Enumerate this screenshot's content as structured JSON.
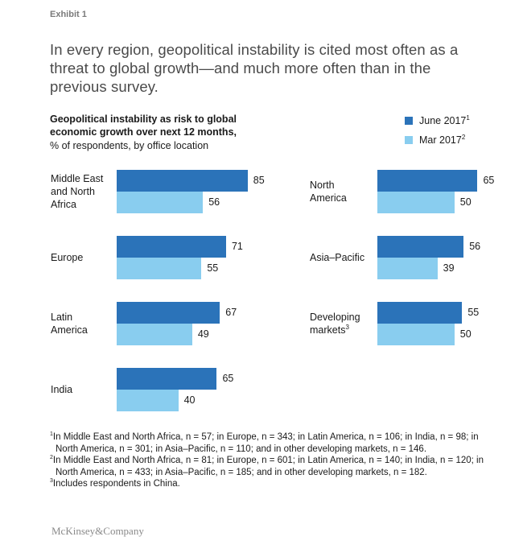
{
  "exhibit_label": "Exhibit 1",
  "headline": "In every region, geopolitical instability is cited most often as a threat to global growth—and much more often than in the previous survey.",
  "chart_data": {
    "type": "bar",
    "orientation": "horizontal",
    "title": "Geopolitical instability as risk to global economic growth over next 12 months,",
    "subtitle": "% of respondents, by office location",
    "categories": [
      {
        "lines": [
          "Middle East",
          "and North",
          "Africa"
        ],
        "sup": ""
      },
      {
        "lines": [
          "Europe"
        ],
        "sup": ""
      },
      {
        "lines": [
          "Latin",
          "America"
        ],
        "sup": ""
      },
      {
        "lines": [
          "India"
        ],
        "sup": ""
      },
      {
        "lines": [
          "North",
          "America"
        ],
        "sup": ""
      },
      {
        "lines": [
          "Asia–Pacific"
        ],
        "sup": ""
      },
      {
        "lines": [
          "Developing",
          "markets"
        ],
        "sup": "3"
      }
    ],
    "series": [
      {
        "name": "June 2017",
        "sup": "1",
        "color": "#2b73b9",
        "values": [
          85,
          71,
          67,
          65,
          65,
          56,
          55
        ]
      },
      {
        "name": "Mar 2017",
        "sup": "2",
        "color": "#89cdef",
        "values": [
          56,
          55,
          49,
          40,
          50,
          39,
          50
        ]
      }
    ],
    "xlim": [
      0,
      100
    ],
    "legend_position": "top-right"
  },
  "footnotes": [
    {
      "sup": "1",
      "text": "In Middle East and North Africa, n = 57; in Europe, n = 343; in Latin America, n = 106; in India, n = 98; in North America, n = 301; in Asia–Pacific, n = 110; and in other developing markets, n = 146."
    },
    {
      "sup": "2",
      "text": "In Middle East and North Africa, n = 81; in Europe, n = 601; in Latin America, n = 140; in India, n = 120; in North America, n = 433; in Asia–Pacific, n = 185; and in other developing markets, n = 182."
    },
    {
      "sup": "3",
      "text": "Includes respondents in China."
    }
  ],
  "logo": "McKinsey&Company"
}
